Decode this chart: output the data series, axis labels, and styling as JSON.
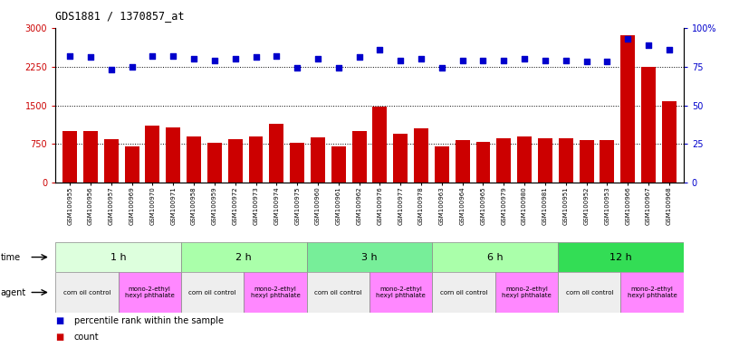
{
  "title": "GDS1881 / 1370857_at",
  "samples": [
    "GSM100955",
    "GSM100956",
    "GSM100957",
    "GSM100969",
    "GSM100970",
    "GSM100971",
    "GSM100958",
    "GSM100959",
    "GSM100972",
    "GSM100973",
    "GSM100974",
    "GSM100975",
    "GSM100960",
    "GSM100961",
    "GSM100962",
    "GSM100976",
    "GSM100977",
    "GSM100978",
    "GSM100963",
    "GSM100964",
    "GSM100965",
    "GSM100979",
    "GSM100980",
    "GSM100981",
    "GSM100951",
    "GSM100952",
    "GSM100953",
    "GSM100966",
    "GSM100967",
    "GSM100968"
  ],
  "counts": [
    1000,
    1000,
    850,
    700,
    1100,
    1080,
    900,
    780,
    850,
    900,
    1150,
    780,
    880,
    700,
    1000,
    1480,
    950,
    1050,
    700,
    820,
    790,
    870,
    900,
    870,
    870,
    830,
    830,
    2850,
    2250,
    1580
  ],
  "percentiles": [
    82,
    81,
    73,
    75,
    82,
    82,
    80,
    79,
    80,
    81,
    82,
    74,
    80,
    74,
    81,
    86,
    79,
    80,
    74,
    79,
    79,
    79,
    80,
    79,
    79,
    78,
    78,
    93,
    89,
    86
  ],
  "bar_color": "#cc0000",
  "dot_color": "#0000cc",
  "ylim_left": [
    0,
    3000
  ],
  "ylim_right": [
    0,
    100
  ],
  "yticks_left": [
    0,
    750,
    1500,
    2250,
    3000
  ],
  "yticks_right": [
    0,
    25,
    50,
    75,
    100
  ],
  "grid_values": [
    750,
    1500,
    2250
  ],
  "time_groups": [
    {
      "label": "1 h",
      "start": 0,
      "end": 6,
      "color": "#ddffdd"
    },
    {
      "label": "2 h",
      "start": 6,
      "end": 12,
      "color": "#aaffaa"
    },
    {
      "label": "3 h",
      "start": 12,
      "end": 18,
      "color": "#77ee99"
    },
    {
      "label": "6 h",
      "start": 18,
      "end": 24,
      "color": "#aaffaa"
    },
    {
      "label": "12 h",
      "start": 24,
      "end": 30,
      "color": "#33dd55"
    }
  ],
  "agent_groups": [
    {
      "label": "corn oil control",
      "start": 0,
      "end": 3,
      "color": "#eeeeee"
    },
    {
      "label": "mono-2-ethyl\nhexyl phthalate",
      "start": 3,
      "end": 6,
      "color": "#ff88ff"
    },
    {
      "label": "corn oil control",
      "start": 6,
      "end": 9,
      "color": "#eeeeee"
    },
    {
      "label": "mono-2-ethyl\nhexyl phthalate",
      "start": 9,
      "end": 12,
      "color": "#ff88ff"
    },
    {
      "label": "corn oil control",
      "start": 12,
      "end": 15,
      "color": "#eeeeee"
    },
    {
      "label": "mono-2-ethyl\nhexyl phthalate",
      "start": 15,
      "end": 18,
      "color": "#ff88ff"
    },
    {
      "label": "corn oil control",
      "start": 18,
      "end": 21,
      "color": "#eeeeee"
    },
    {
      "label": "mono-2-ethyl\nhexyl phthalate",
      "start": 21,
      "end": 24,
      "color": "#ff88ff"
    },
    {
      "label": "corn oil control",
      "start": 24,
      "end": 27,
      "color": "#eeeeee"
    },
    {
      "label": "mono-2-ethyl\nhexyl phthalate",
      "start": 27,
      "end": 30,
      "color": "#ff88ff"
    }
  ],
  "legend_count_color": "#cc0000",
  "legend_pct_color": "#0000cc",
  "bg_color": "#ffffff",
  "tick_label_color_left": "#cc0000",
  "tick_label_color_right": "#0000cc"
}
